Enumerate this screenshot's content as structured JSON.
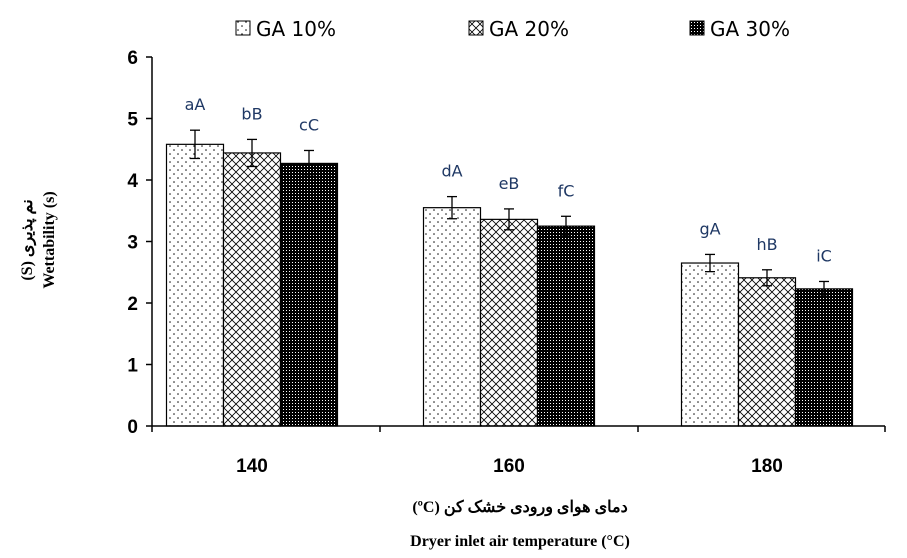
{
  "chart_data": {
    "type": "bar",
    "categories": [
      "140",
      "160",
      "180"
    ],
    "series": [
      {
        "name": "GA 10%",
        "pattern": "dots",
        "values": [
          4.58,
          3.55,
          2.65
        ],
        "errors": [
          0.23,
          0.18,
          0.14
        ],
        "labels": [
          "aA",
          "dA",
          "gA"
        ]
      },
      {
        "name": "GA 20%",
        "pattern": "cross",
        "values": [
          4.44,
          3.36,
          2.41
        ],
        "errors": [
          0.22,
          0.17,
          0.13
        ],
        "labels": [
          "bB",
          "eB",
          "hB"
        ]
      },
      {
        "name": "GA 30%",
        "pattern": "dense",
        "values": [
          4.27,
          3.25,
          2.23
        ],
        "errors": [
          0.21,
          0.16,
          0.12
        ],
        "labels": [
          "cC",
          "fC",
          "iC"
        ]
      }
    ],
    "ylim": [
      0,
      6
    ],
    "yticks": [
      "0",
      "1",
      "2",
      "3",
      "4",
      "5",
      "6"
    ],
    "ylabel_fa": "نم پذیری (S)",
    "ylabel_en": "Wettability (s)",
    "xlabel_fa": "دمای هوای ورودی خشک کن (ºC)",
    "xlabel_en": "Dryer inlet air temperature (°C)",
    "legend_position": "top",
    "grid": false,
    "colors": {
      "bar_edge": "#000000",
      "sig_text": "#1f3864",
      "axis": "#000000"
    }
  }
}
